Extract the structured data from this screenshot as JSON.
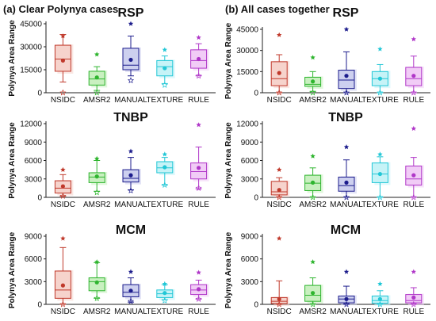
{
  "panel_headers": {
    "left": "(a) Clear Polynya cases",
    "right": "(b) All cases together"
  },
  "colors": {
    "NSIDC": "#c0392b",
    "AMSR2": "#2fb52f",
    "MANUAL": "#1c1c8c",
    "TEXTURE": "#21c7d6",
    "RULE": "#b036c8"
  },
  "box_fills": {
    "NSIDC": "#f6d3cc",
    "AMSR2": "#c9f0c0",
    "MANUAL": "#cdd0ef",
    "TEXTURE": "#c6f3f7",
    "RULE": "#f1ccf6"
  },
  "chart_data": [
    {
      "id": "a-rsp",
      "type": "box",
      "title": "RSP",
      "ylabel": "Polynya Area Range",
      "ylim": [
        0,
        45000
      ],
      "yticks": [
        "0",
        "15000",
        "30000",
        "45000"
      ],
      "tick_values": [
        0,
        15000,
        30000,
        45000
      ],
      "categories": [
        "NSIDC",
        "AMSR2",
        "MANUAL",
        "TEXTURE",
        "RULE"
      ],
      "boxes": [
        {
          "whislo": 7000,
          "q1": 14000,
          "median": 22000,
          "q3": 31000,
          "whishi": 38000,
          "mean": 21000,
          "outlier_hi": 37000,
          "outlier_lo": 0
        },
        {
          "whislo": 1500,
          "q1": 5000,
          "median": 9000,
          "q3": 14000,
          "whishi": 17000,
          "mean": 10000,
          "outlier_hi": 25000,
          "outlier_lo": 0
        },
        {
          "whislo": 11000,
          "q1": 15000,
          "median": 18000,
          "q3": 29000,
          "whishi": 37000,
          "mean": 21500,
          "outlier_hi": 45000,
          "outlier_lo": 8000
        },
        {
          "whislo": 6000,
          "q1": 11000,
          "median": 17000,
          "q3": 21000,
          "whishi": 24000,
          "mean": 16000,
          "outlier_hi": 28000,
          "outlier_lo": 5000
        },
        {
          "whislo": 11000,
          "q1": 16000,
          "median": 21000,
          "q3": 28000,
          "whishi": 32000,
          "mean": 22000,
          "outlier_hi": 36000,
          "outlier_lo": 11000
        }
      ]
    },
    {
      "id": "a-tnbp",
      "type": "box",
      "title": "TNBP",
      "ylabel": "Polynya Area Range",
      "ylim": [
        0,
        12000
      ],
      "yticks": [
        "0",
        "3000",
        "6000",
        "9000",
        "12000"
      ],
      "tick_values": [
        0,
        3000,
        6000,
        9000,
        12000
      ],
      "categories": [
        "NSIDC",
        "AMSR2",
        "MANUAL",
        "TEXTURE",
        "RULE"
      ],
      "boxes": [
        {
          "whislo": 200,
          "q1": 700,
          "median": 1500,
          "q3": 2700,
          "whishi": 3700,
          "mean": 1800,
          "outlier_hi": 4500,
          "outlier_lo": 200
        },
        {
          "whislo": 1000,
          "q1": 2400,
          "median": 3300,
          "q3": 4000,
          "whishi": 6000,
          "mean": 3400,
          "outlier_hi": 6300,
          "outlier_lo": 800
        },
        {
          "whislo": 1200,
          "q1": 2500,
          "median": 3100,
          "q3": 4500,
          "whishi": 6500,
          "mean": 3600,
          "outlier_hi": 7500,
          "outlier_lo": 1100
        },
        {
          "whislo": 2000,
          "q1": 4000,
          "median": 4800,
          "q3": 5800,
          "whishi": 6500,
          "mean": 4900,
          "outlier_hi": 7000,
          "outlier_lo": 2000
        },
        {
          "whislo": 1400,
          "q1": 3000,
          "median": 4200,
          "q3": 5600,
          "whishi": 8200,
          "mean": 4800,
          "outlier_hi": 11800,
          "outlier_lo": 1500
        }
      ]
    },
    {
      "id": "a-mcm",
      "type": "box",
      "title": "MCM",
      "ylabel": "Polynya Area Range",
      "ylim": [
        0,
        9000
      ],
      "yticks": [
        "0",
        "3000",
        "6000",
        "9000"
      ],
      "tick_values": [
        0,
        3000,
        6000,
        9000
      ],
      "categories": [
        "NSIDC",
        "AMSR2",
        "MANUAL",
        "TEXTURE",
        "RULE"
      ],
      "boxes": [
        {
          "whislo": 0,
          "q1": 800,
          "median": 1900,
          "q3": 4400,
          "whishi": 7500,
          "mean": 2500,
          "outlier_hi": 8700,
          "outlier_lo": 0
        },
        {
          "whislo": 800,
          "q1": 1800,
          "median": 3000,
          "q3": 3500,
          "whishi": 5500,
          "mean": 2900,
          "outlier_hi": 5600,
          "outlier_lo": 800
        },
        {
          "whislo": 300,
          "q1": 1000,
          "median": 1600,
          "q3": 2600,
          "whishi": 3500,
          "mean": 1800,
          "outlier_hi": 4300,
          "outlier_lo": 400
        },
        {
          "whislo": 600,
          "q1": 900,
          "median": 1400,
          "q3": 1900,
          "whishi": 2600,
          "mean": 1500,
          "outlier_hi": 2700,
          "outlier_lo": 500
        },
        {
          "whislo": 700,
          "q1": 1300,
          "median": 1900,
          "q3": 2600,
          "whishi": 3200,
          "mean": 2000,
          "outlier_hi": 4200,
          "outlier_lo": 700
        }
      ]
    },
    {
      "id": "b-rsp",
      "type": "box",
      "title": "RSP",
      "ylabel": "Polynya Area Range",
      "ylim": [
        0,
        45000
      ],
      "yticks": [
        "0",
        "15000",
        "30000",
        "45000"
      ],
      "tick_values": [
        0,
        15000,
        30000,
        45000
      ],
      "categories": [
        "NSIDC",
        "AMSR2",
        "MANUAL",
        "TEXTURE",
        "RULE"
      ],
      "boxes": [
        {
          "whislo": 0,
          "q1": 5000,
          "median": 10000,
          "q3": 22000,
          "whishi": 27000,
          "mean": 14000,
          "outlier_hi": 41000,
          "outlier_lo": 0
        },
        {
          "whislo": 1000,
          "q1": 4500,
          "median": 6000,
          "q3": 11000,
          "whishi": 15000,
          "mean": 8000,
          "outlier_hi": 25000,
          "outlier_lo": 0
        },
        {
          "whislo": 0,
          "q1": 3000,
          "median": 9000,
          "q3": 16000,
          "whishi": 29000,
          "mean": 12000,
          "outlier_hi": 45000,
          "outlier_lo": 0
        },
        {
          "whislo": 0,
          "q1": 5000,
          "median": 10000,
          "q3": 15000,
          "whishi": 20000,
          "mean": 10000,
          "outlier_hi": 31000,
          "outlier_lo": 0
        },
        {
          "whislo": 0,
          "q1": 5000,
          "median": 10000,
          "q3": 18000,
          "whishi": 26000,
          "mean": 12000,
          "outlier_hi": 38000,
          "outlier_lo": 0
        }
      ]
    },
    {
      "id": "b-tnbp",
      "type": "box",
      "title": "TNBP",
      "ylabel": "Polynya Area Range",
      "ylim": [
        0,
        12000
      ],
      "yticks": [
        "0",
        "3000",
        "6000",
        "9000",
        "12000"
      ],
      "tick_values": [
        0,
        3000,
        6000,
        9000,
        12000
      ],
      "categories": [
        "NSIDC",
        "AMSR2",
        "MANUAL",
        "TEXTURE",
        "RULE"
      ],
      "boxes": [
        {
          "whislo": 0,
          "q1": 400,
          "median": 900,
          "q3": 2600,
          "whishi": 3200,
          "mean": 1200,
          "outlier_hi": 4500,
          "outlier_lo": 0
        },
        {
          "whislo": 0,
          "q1": 1100,
          "median": 2300,
          "q3": 3600,
          "whishi": 4800,
          "mean": 2400,
          "outlier_hi": 6700,
          "outlier_lo": 0
        },
        {
          "whislo": 0,
          "q1": 1000,
          "median": 1900,
          "q3": 3300,
          "whishi": 6100,
          "mean": 2400,
          "outlier_hi": 8200,
          "outlier_lo": 0
        },
        {
          "whislo": 0,
          "q1": 2400,
          "median": 3800,
          "q3": 5600,
          "whishi": 6600,
          "mean": 3800,
          "outlier_hi": 7000,
          "outlier_lo": 0
        },
        {
          "whislo": 0,
          "q1": 2000,
          "median": 3000,
          "q3": 5100,
          "whishi": 6500,
          "mean": 3600,
          "outlier_hi": 11200,
          "outlier_lo": 0
        }
      ]
    },
    {
      "id": "b-mcm",
      "type": "box",
      "title": "MCM",
      "ylabel": "Polynya Area Range",
      "ylim": [
        0,
        9000
      ],
      "yticks": [
        "0",
        "3000",
        "6000",
        "9000"
      ],
      "tick_values": [
        0,
        3000,
        6000,
        9000
      ],
      "categories": [
        "NSIDC",
        "AMSR2",
        "MANUAL",
        "TEXTURE",
        "RULE"
      ],
      "boxes": [
        {
          "whislo": 0,
          "q1": 100,
          "median": 400,
          "q3": 900,
          "whishi": 3100,
          "mean": 700,
          "outlier_hi": 8700,
          "outlier_lo": 0
        },
        {
          "whislo": 0,
          "q1": 400,
          "median": 1200,
          "q3": 2500,
          "whishi": 3500,
          "mean": 1500,
          "outlier_hi": 5600,
          "outlier_lo": 0
        },
        {
          "whislo": 0,
          "q1": 200,
          "median": 700,
          "q3": 1100,
          "whishi": 2400,
          "mean": 700,
          "outlier_hi": 4300,
          "outlier_lo": 0
        },
        {
          "whislo": 0,
          "q1": 150,
          "median": 500,
          "q3": 1100,
          "whishi": 1800,
          "mean": 700,
          "outlier_hi": 2700,
          "outlier_lo": 0
        },
        {
          "whislo": 0,
          "q1": 200,
          "median": 500,
          "q3": 1300,
          "whishi": 2200,
          "mean": 900,
          "outlier_hi": 4300,
          "outlier_lo": 0
        }
      ]
    }
  ]
}
